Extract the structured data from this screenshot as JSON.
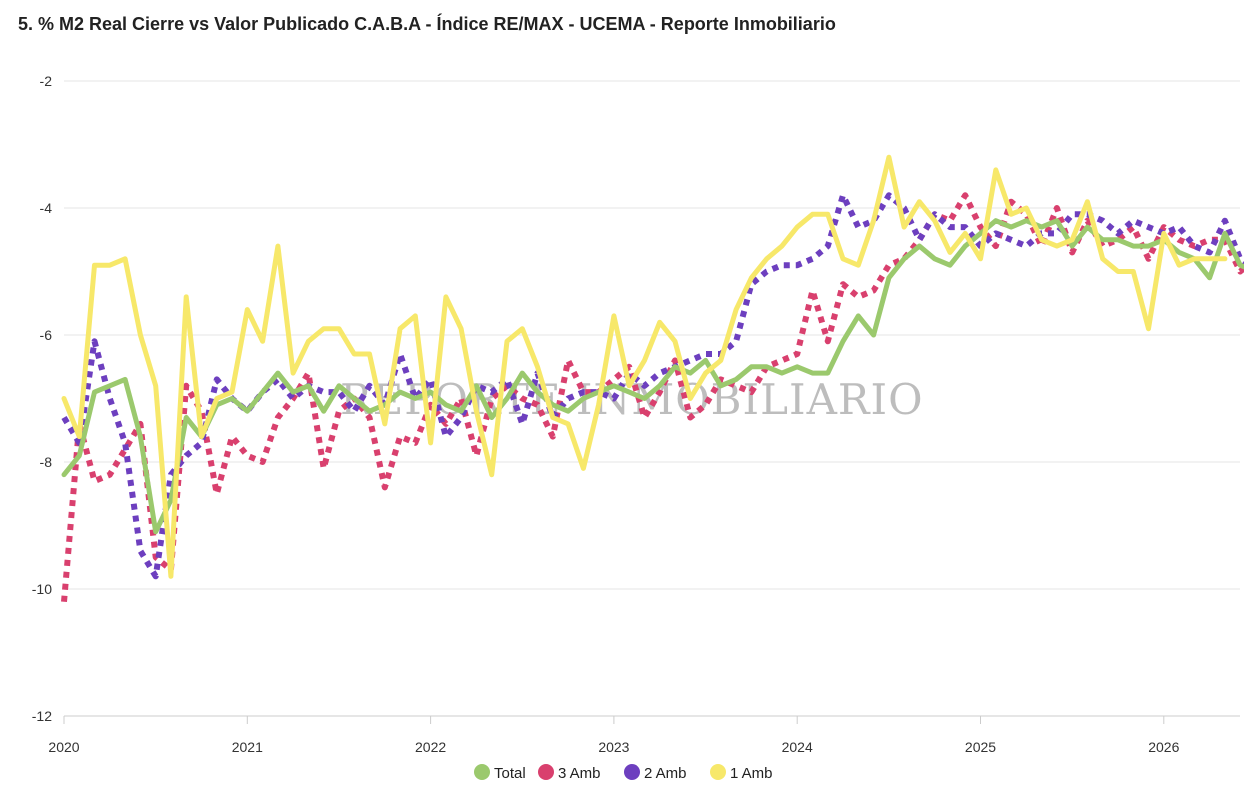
{
  "title": "5. % M2 Real Cierre vs Valor Publicado C.A.B.A - Índice RE/MAX - UCEMA - Reporte Inmobiliario",
  "watermark": "REPORTE INMOBILIARIO",
  "chart_data": {
    "type": "line",
    "title": "5. % M2 Real Cierre vs Valor Publicado C.A.B.A - Índice RE/MAX - UCEMA - Reporte Inmobiliario",
    "xlabel": "",
    "ylabel": "",
    "x_ticks": [
      "2020",
      "2021",
      "2022",
      "2023",
      "2024",
      "2025",
      "2026"
    ],
    "y_ticks": [
      -2,
      -4,
      -6,
      -8,
      -10,
      -12
    ],
    "ylim": [
      -12,
      -2
    ],
    "x_start": "2020-01",
    "grid": true,
    "legend_position": "bottom",
    "series": [
      {
        "name": "Total",
        "color": "#9bc96d",
        "style": "solid",
        "values": [
          -8.2,
          -7.9,
          -6.9,
          -6.8,
          -6.7,
          -7.6,
          -9.1,
          -8.6,
          -7.3,
          -7.6,
          -7.1,
          -7.0,
          -7.2,
          -6.9,
          -6.6,
          -6.9,
          -6.8,
          -7.2,
          -6.8,
          -7.0,
          -7.2,
          -7.1,
          -6.9,
          -7.0,
          -6.9,
          -7.1,
          -7.2,
          -6.8,
          -7.3,
          -7.0,
          -6.6,
          -6.9,
          -7.1,
          -7.2,
          -7.0,
          -6.9,
          -6.8,
          -6.9,
          -7.0,
          -6.8,
          -6.5,
          -6.6,
          -6.4,
          -6.8,
          -6.7,
          -6.5,
          -6.5,
          -6.6,
          -6.5,
          -6.6,
          -6.6,
          -6.1,
          -5.7,
          -6.0,
          -5.1,
          -4.8,
          -4.6,
          -4.8,
          -4.9,
          -4.6,
          -4.4,
          -4.2,
          -4.3,
          -4.2,
          -4.3,
          -4.2,
          -4.6,
          -4.3,
          -4.5,
          -4.5,
          -4.6,
          -4.6,
          -4.5,
          -4.7,
          -4.8,
          -5.1,
          -4.4,
          -4.9,
          -5.0,
          -4.9,
          -4.8
        ]
      },
      {
        "name": "3 Amb",
        "color": "#d9406e",
        "style": "dotted",
        "values": [
          -10.2,
          -7.4,
          -8.3,
          -8.2,
          -7.8,
          -7.4,
          -9.5,
          -9.7,
          -6.8,
          -7.2,
          -8.5,
          -7.6,
          -7.9,
          -8.0,
          -7.3,
          -7.0,
          -6.6,
          -8.1,
          -7.2,
          -7.0,
          -7.3,
          -8.4,
          -7.6,
          -7.7,
          -7.1,
          -7.4,
          -7.0,
          -7.9,
          -7.0,
          -6.8,
          -7.0,
          -7.1,
          -7.6,
          -6.4,
          -6.9,
          -6.9,
          -6.7,
          -6.5,
          -7.3,
          -6.9,
          -6.4,
          -7.3,
          -7.1,
          -6.7,
          -6.8,
          -6.9,
          -6.5,
          -6.4,
          -6.3,
          -5.3,
          -6.1,
          -5.2,
          -5.4,
          -5.3,
          -4.9,
          -4.8,
          -4.5,
          -4.1,
          -4.2,
          -3.8,
          -4.3,
          -4.6,
          -3.9,
          -4.1,
          -4.6,
          -4.0,
          -4.7,
          -4.2,
          -4.6,
          -4.5,
          -4.3,
          -4.8,
          -4.3,
          -4.5,
          -4.6,
          -4.5,
          -4.5,
          -5.0,
          -4.8,
          -4.9,
          -4.8
        ]
      },
      {
        "name": "2 Amb",
        "color": "#6d3fbf",
        "style": "dotted",
        "values": [
          -7.3,
          -7.7,
          -6.1,
          -7.0,
          -7.7,
          -9.4,
          -9.8,
          -8.2,
          -7.9,
          -7.7,
          -6.7,
          -7.0,
          -7.2,
          -6.9,
          -6.7,
          -7.0,
          -6.8,
          -6.9,
          -6.9,
          -7.2,
          -6.8,
          -7.1,
          -6.3,
          -7.0,
          -6.7,
          -7.6,
          -7.3,
          -6.8,
          -6.9,
          -6.7,
          -7.4,
          -6.6,
          -7.3,
          -7.0,
          -6.9,
          -6.9,
          -7.0,
          -6.6,
          -6.8,
          -6.6,
          -6.5,
          -6.4,
          -6.3,
          -6.3,
          -6.1,
          -5.2,
          -5.0,
          -4.9,
          -4.9,
          -4.8,
          -4.6,
          -3.8,
          -4.3,
          -4.2,
          -3.8,
          -4.0,
          -4.5,
          -4.1,
          -4.3,
          -4.3,
          -4.6,
          -4.4,
          -4.5,
          -4.6,
          -4.4,
          -4.4,
          -4.1,
          -4.1,
          -4.2,
          -4.4,
          -4.2,
          -4.3,
          -4.4,
          -4.3,
          -4.6,
          -4.7,
          -4.2,
          -4.8,
          -5.0,
          -4.8,
          -4.7
        ]
      },
      {
        "name": "1 Amb",
        "color": "#f7e86a",
        "style": "solid",
        "values": [
          -7.0,
          -7.6,
          -4.9,
          -4.9,
          -4.8,
          -6.0,
          -6.8,
          -9.8,
          -5.4,
          -7.6,
          -7.0,
          -6.9,
          -5.6,
          -6.1,
          -4.6,
          -6.6,
          -6.1,
          -5.9,
          -5.9,
          -6.3,
          -6.3,
          -7.4,
          -5.9,
          -5.7,
          -7.7,
          -5.4,
          -5.9,
          -7.2,
          -8.2,
          -6.1,
          -5.9,
          -6.5,
          -7.3,
          -7.4,
          -8.1,
          -7.1,
          -5.7,
          -6.8,
          -6.4,
          -5.8,
          -6.1,
          -7.0,
          -6.6,
          -6.4,
          -5.6,
          -5.1,
          -4.8,
          -4.6,
          -4.3,
          -4.1,
          -4.1,
          -4.8,
          -4.9,
          -4.2,
          -3.2,
          -4.3,
          -3.9,
          -4.2,
          -4.7,
          -4.4,
          -4.8,
          -3.4,
          -4.1,
          -4.0,
          -4.5,
          -4.6,
          -4.5,
          -3.9,
          -4.8,
          -5.0,
          -5.0,
          -5.9,
          -4.4,
          -4.9,
          -4.8,
          -4.8,
          -4.8
        ]
      }
    ]
  }
}
